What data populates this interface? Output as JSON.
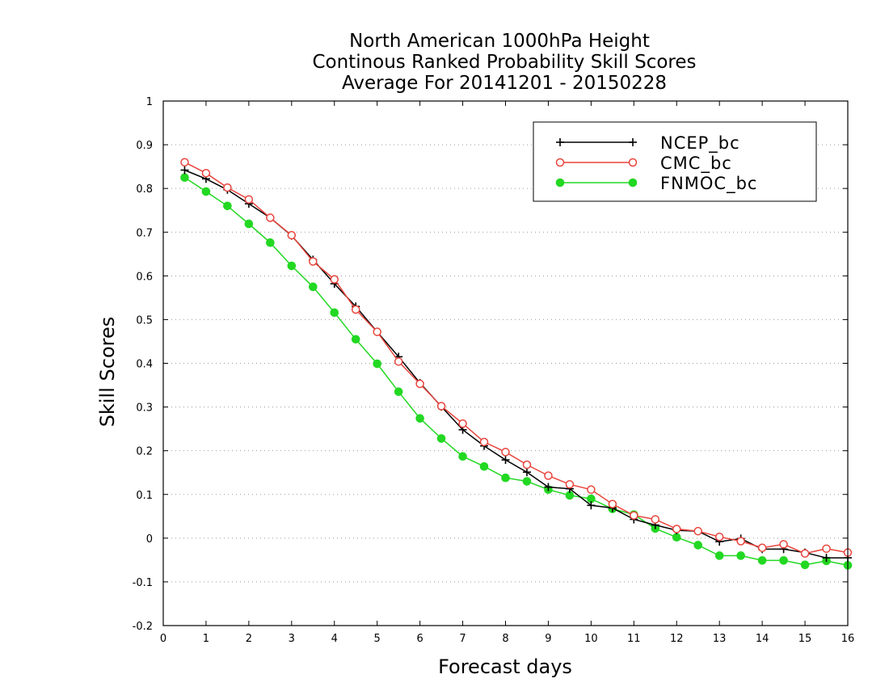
{
  "chart_data": {
    "type": "line",
    "title_lines": [
      "North American 1000hPa Height",
      "Continous Ranked Probability Skill Scores",
      "Average For 20141201 - 20150228"
    ],
    "xlabel": "Forecast days",
    "ylabel": "Skill Scores",
    "xlim": [
      0,
      16
    ],
    "ylim": [
      -0.2,
      1
    ],
    "x_ticks": [
      0,
      1,
      2,
      3,
      4,
      5,
      6,
      7,
      8,
      9,
      10,
      11,
      12,
      13,
      14,
      15,
      16
    ],
    "x_tick_labels": [
      "0",
      "1",
      "2",
      "3",
      "4",
      "5",
      "6",
      "7",
      "8",
      "9",
      "10",
      "11",
      "12",
      "13",
      "14",
      "15",
      "16"
    ],
    "y_ticks": [
      -0.2,
      -0.1,
      0,
      0.1,
      0.2,
      0.3,
      0.4,
      0.5,
      0.6,
      0.7,
      0.8,
      0.9,
      1
    ],
    "y_tick_labels": [
      "-0.2",
      "-0.1",
      "0",
      "0.1",
      "0.2",
      "0.3",
      "0.4",
      "0.5",
      "0.6",
      "0.7",
      "0.8",
      "0.9",
      "1"
    ],
    "grid": "horizontal dotted",
    "legend_position": "top-right",
    "x": [
      0.5,
      1.0,
      1.5,
      2.0,
      2.5,
      3.0,
      3.5,
      4.0,
      4.5,
      5.0,
      5.5,
      6.0,
      6.5,
      7.0,
      7.5,
      8.0,
      8.5,
      9.0,
      9.5,
      10.0,
      10.5,
      11.0,
      11.5,
      12.0,
      12.5,
      13.0,
      13.5,
      14.0,
      14.5,
      15.0,
      15.5,
      16.0
    ],
    "series": [
      {
        "name": "NCEP_bc",
        "color": "#000000",
        "marker": "plus",
        "values": [
          0.842,
          0.822,
          0.797,
          0.765,
          0.733,
          0.692,
          0.637,
          0.582,
          0.53,
          0.472,
          0.415,
          0.355,
          0.301,
          0.248,
          0.211,
          0.179,
          0.151,
          0.117,
          0.113,
          0.075,
          0.069,
          0.043,
          0.03,
          0.018,
          0.016,
          -0.008,
          -0.001,
          -0.025,
          -0.025,
          -0.033,
          -0.045,
          -0.045
        ]
      },
      {
        "name": "CMC_bc",
        "color": "#e8443c",
        "marker": "open-circle",
        "values": [
          0.86,
          0.835,
          0.802,
          0.775,
          0.733,
          0.693,
          0.633,
          0.592,
          0.523,
          0.472,
          0.404,
          0.353,
          0.302,
          0.262,
          0.22,
          0.197,
          0.168,
          0.143,
          0.123,
          0.111,
          0.078,
          0.052,
          0.043,
          0.021,
          0.016,
          0.003,
          -0.007,
          -0.022,
          -0.014,
          -0.035,
          -0.024,
          -0.033
        ]
      },
      {
        "name": "FNMOC_bc",
        "color": "#22d822",
        "marker": "filled-circle",
        "values": [
          0.825,
          0.793,
          0.76,
          0.719,
          0.676,
          0.623,
          0.575,
          0.516,
          0.455,
          0.399,
          0.335,
          0.274,
          0.228,
          0.187,
          0.164,
          0.138,
          0.13,
          0.111,
          0.098,
          0.09,
          0.067,
          0.054,
          0.022,
          0.002,
          -0.016,
          -0.04,
          -0.04,
          -0.051,
          -0.051,
          -0.061,
          -0.052,
          -0.062
        ]
      }
    ]
  }
}
